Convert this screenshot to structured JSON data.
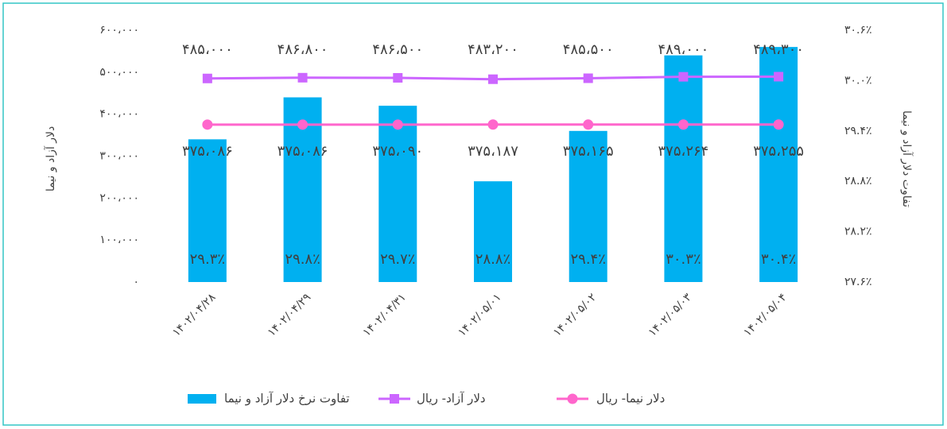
{
  "chart_data": {
    "type": "bar-line",
    "y_label": "دلار آزاد و نیما",
    "y2_label": "تفاوت دلار آزاد و نیما",
    "categories": [
      "۱۴۰۲/۰۴/۲۸",
      "۱۴۰۲/۰۴/۲۹",
      "۱۴۰۲/۰۴/۳۱",
      "۱۴۰۲/۰۵/۰۱",
      "۱۴۰۲/۰۵/۰۲",
      "۱۴۰۲/۰۵/۰۳",
      "۱۴۰۲/۰۵/۰۴"
    ],
    "ylim": [
      0,
      600000
    ],
    "yticks": [
      {
        "value": 0,
        "label": "۰"
      },
      {
        "value": 100000,
        "label": "۱۰۰،۰۰۰"
      },
      {
        "value": 200000,
        "label": "۲۰۰،۰۰۰"
      },
      {
        "value": 300000,
        "label": "۳۰۰،۰۰۰"
      },
      {
        "value": 400000,
        "label": "۴۰۰،۰۰۰"
      },
      {
        "value": 500000,
        "label": "۵۰۰،۰۰۰"
      },
      {
        "value": 600000,
        "label": "۶۰۰،۰۰۰"
      }
    ],
    "y2lim": [
      27.6,
      30.6
    ],
    "y2ticks": [
      {
        "value": 27.6,
        "label": "۲۷.۶٪"
      },
      {
        "value": 28.2,
        "label": "۲۸.۲٪"
      },
      {
        "value": 28.8,
        "label": "۲۸.۸٪"
      },
      {
        "value": 29.4,
        "label": "۲۹.۴٪"
      },
      {
        "value": 30.0,
        "label": "۳۰.۰٪"
      },
      {
        "value": 30.6,
        "label": "۳۰.۶٪"
      }
    ],
    "series": [
      {
        "name": "تفاوت نرخ دلار آزاد و نیما",
        "kind": "bar",
        "axis": "y2",
        "color": "#00b0f0",
        "values": [
          29.3,
          29.8,
          29.7,
          28.8,
          29.4,
          30.3,
          30.4
        ],
        "value_labels": [
          "۲۹.۳٪",
          "۲۹.۸٪",
          "۲۹.۷٪",
          "۲۸.۸٪",
          "۲۹.۴٪",
          "۳۰.۳٪",
          "۳۰.۴٪"
        ]
      },
      {
        "name": "دلار آزاد- ریال",
        "kind": "line",
        "marker": "square",
        "color": "#cc66ff",
        "values": [
          485000,
          486800,
          486500,
          483200,
          485500,
          489000,
          489300
        ],
        "value_labels": [
          "۴۸۵،۰۰۰",
          "۴۸۶،۸۰۰",
          "۴۸۶،۵۰۰",
          "۴۸۳،۲۰۰",
          "۴۸۵،۵۰۰",
          "۴۸۹،۰۰۰",
          "۴۸۹،۳۰۰"
        ]
      },
      {
        "name": "دلار نیما- ریال",
        "kind": "line",
        "marker": "circle",
        "color": "#ff66cc",
        "values": [
          375086,
          375086,
          375090,
          375187,
          375165,
          375264,
          375255
        ],
        "value_labels": [
          "۳۷۵،۰۸۶",
          "۳۷۵،۰۸۶",
          "۳۷۵،۰۹۰",
          "۳۷۵،۱۸۷",
          "۳۷۵،۱۶۵",
          "۳۷۵،۲۶۴",
          "۳۷۵،۲۵۵"
        ]
      }
    ]
  }
}
